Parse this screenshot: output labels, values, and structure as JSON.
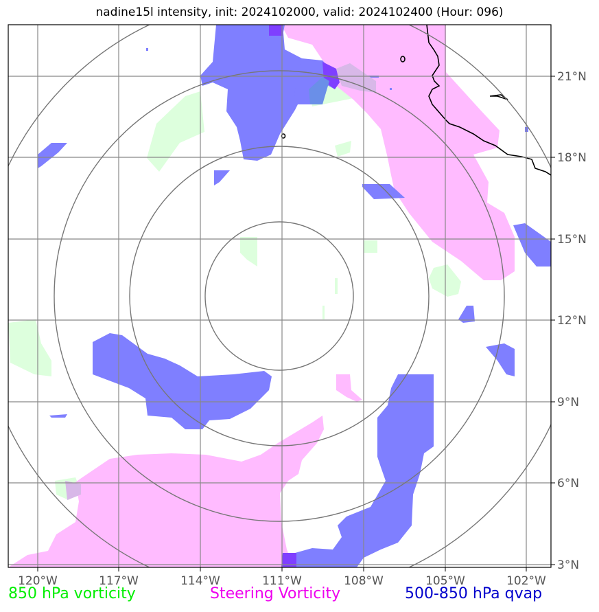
{
  "title": "nadine15l intensity, init: 2024102000, valid: 2024102400 (Hour: 096)",
  "lon_labels": [
    "120°W",
    "117°W",
    "114°W",
    "111°W",
    "108°W",
    "105°W",
    "102°W"
  ],
  "lat_labels": [
    "21°N",
    "18°N",
    "15°N",
    "12°N",
    "9°N",
    "6°N",
    "3°N"
  ],
  "legend": {
    "green": "850 hPa vorticity",
    "magenta": "Steering Vorticity",
    "blue": "500-850 hPa qvap"
  },
  "colors": {
    "green": "#ddffdd",
    "magenta": "#ffbbff",
    "blue": "#7f7fff",
    "grid": "#888888"
  }
}
